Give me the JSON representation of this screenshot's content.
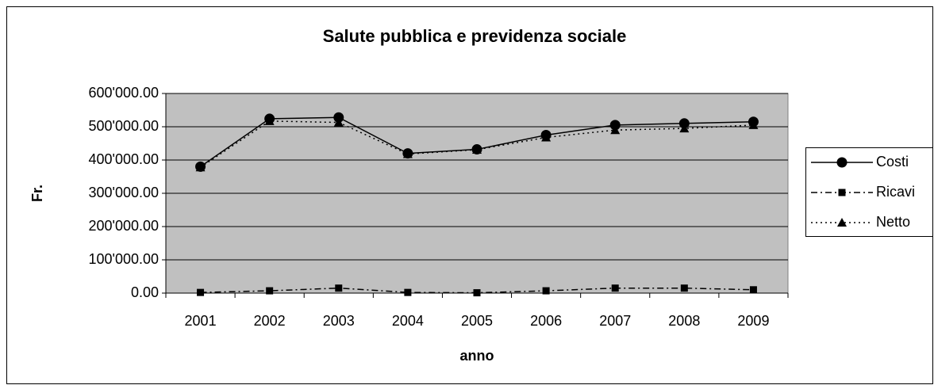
{
  "chart_data": {
    "type": "line",
    "title": "Salute pubblica e previdenza sociale",
    "x_label": "anno",
    "y_label": "Fr.",
    "categories": [
      "2001",
      "2002",
      "2003",
      "2004",
      "2005",
      "2006",
      "2007",
      "2008",
      "2009"
    ],
    "series": [
      {
        "name": "Costi",
        "color": "#000000",
        "dash": "solid",
        "marker": "circle",
        "values": [
          380000,
          524000,
          528000,
          420000,
          432000,
          475000,
          505000,
          510000,
          515000
        ]
      },
      {
        "name": "Ricavi",
        "color": "#000000",
        "dash": "dashdot",
        "marker": "square",
        "values": [
          2000,
          7000,
          15000,
          2000,
          1000,
          7000,
          15000,
          15000,
          10000
        ]
      },
      {
        "name": "Netto",
        "color": "#000000",
        "dash": "dotted",
        "marker": "triangle",
        "values": [
          378000,
          517000,
          513000,
          418000,
          431000,
          468000,
          490000,
          495000,
          505000
        ]
      }
    ],
    "ylim": [
      0,
      600000
    ],
    "yticks": [
      {
        "value": 0,
        "label": "0.00"
      },
      {
        "value": 100000,
        "label": "100'000.00"
      },
      {
        "value": 200000,
        "label": "200'000.00"
      },
      {
        "value": 300000,
        "label": "300'000.00"
      },
      {
        "value": 400000,
        "label": "400'000.00"
      },
      {
        "value": 500000,
        "label": "500'000.00"
      },
      {
        "value": 600000,
        "label": "600'000.00"
      }
    ],
    "grid": true,
    "plot_background": "#c0c0c0",
    "legend": "right"
  }
}
